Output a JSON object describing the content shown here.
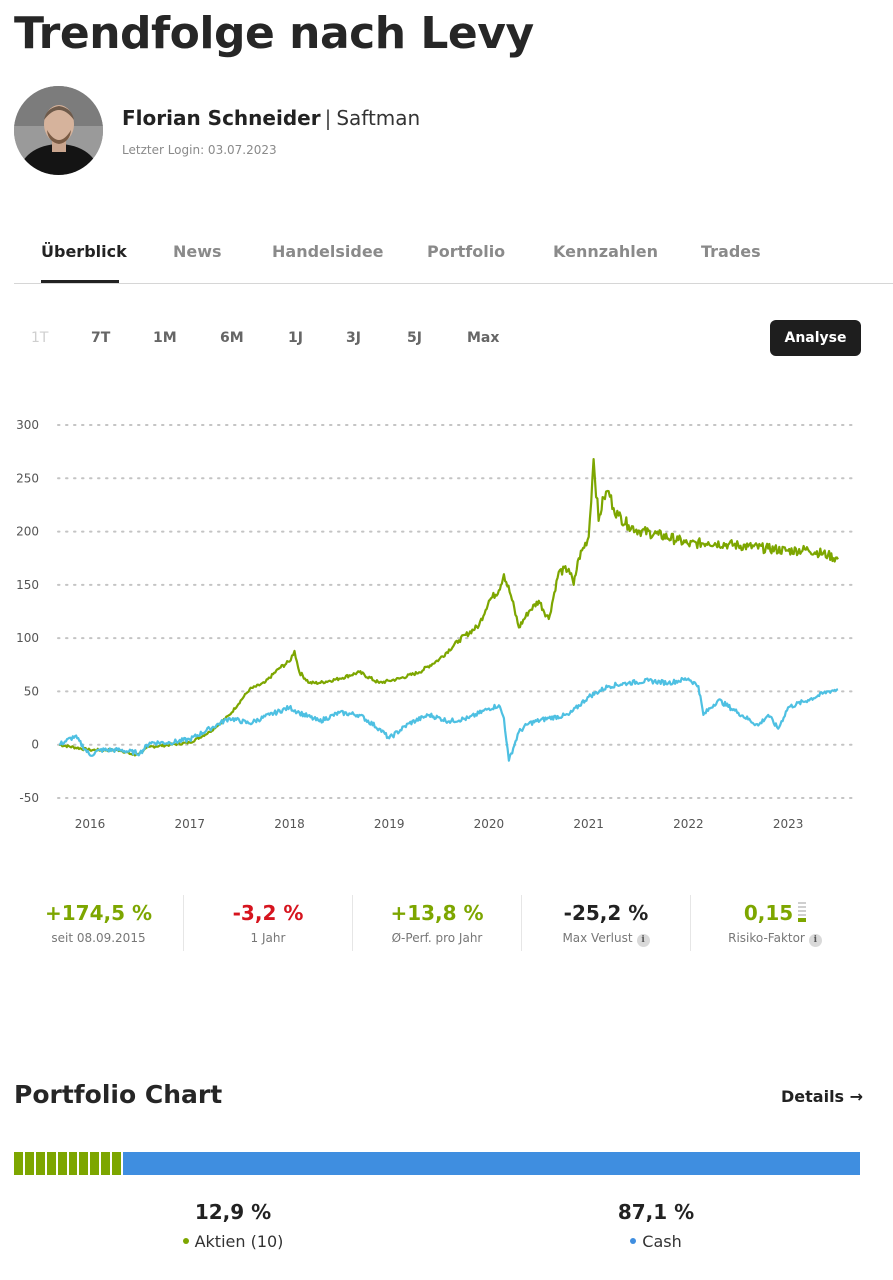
{
  "page": {
    "title": "Trendfolge nach Levy"
  },
  "author": {
    "name": "Florian Schneider",
    "separator": "|",
    "nickname": "Saftman",
    "last_login": "Letzter Login: 03.07.2023"
  },
  "tabs": [
    {
      "label": "Überblick",
      "active": true
    },
    {
      "label": "News"
    },
    {
      "label": "Handelsidee"
    },
    {
      "label": "Portfolio"
    },
    {
      "label": "Kennzahlen"
    },
    {
      "label": "Trades"
    }
  ],
  "ranges": [
    {
      "label": "1T",
      "disabled": true
    },
    {
      "label": "7T"
    },
    {
      "label": "1M"
    },
    {
      "label": "6M"
    },
    {
      "label": "1J"
    },
    {
      "label": "3J"
    },
    {
      "label": "5J"
    },
    {
      "label": "Max"
    }
  ],
  "analyse_button": "Analyse",
  "colors": {
    "green": "#7da600",
    "blue": "#4ec0e2",
    "red": "#d6141e",
    "bar_blue": "#3f8ee0",
    "dark": "#1e1e1e"
  },
  "chart_data": {
    "type": "line",
    "title": "",
    "xlabel": "",
    "ylabel": "",
    "ylim": [
      -50,
      300
    ],
    "yticks": [
      300,
      250,
      200,
      150,
      100,
      50,
      0,
      -50
    ],
    "xticks": [
      "2016",
      "2017",
      "2018",
      "2019",
      "2020",
      "2021",
      "2022",
      "2023"
    ],
    "grid": "horizontal-dotted",
    "series": [
      {
        "color": "#7da600",
        "x": [
          2015.69,
          2016.0,
          2016.3,
          2016.45,
          2016.6,
          2016.8,
          2017.0,
          2017.2,
          2017.4,
          2017.6,
          2017.75,
          2017.9,
          2018.0,
          2018.05,
          2018.1,
          2018.2,
          2018.3,
          2018.5,
          2018.7,
          2018.9,
          2019.0,
          2019.1,
          2019.3,
          2019.5,
          2019.7,
          2019.9,
          2020.0,
          2020.1,
          2020.15,
          2020.22,
          2020.3,
          2020.4,
          2020.5,
          2020.6,
          2020.7,
          2020.8,
          2020.85,
          2020.9,
          2021.0,
          2021.05,
          2021.1,
          2021.15,
          2021.2,
          2021.25,
          2021.3,
          2021.4,
          2021.5,
          2021.7,
          2021.9,
          2022.0,
          2022.2,
          2022.4,
          2022.6,
          2022.8,
          2023.0,
          2023.2,
          2023.4,
          2023.5
        ],
        "y": [
          0,
          -5,
          -5,
          -10,
          -2,
          0,
          2,
          12,
          28,
          52,
          58,
          72,
          78,
          88,
          68,
          58,
          58,
          62,
          68,
          58,
          60,
          62,
          68,
          80,
          98,
          112,
          135,
          145,
          160,
          140,
          110,
          125,
          135,
          118,
          162,
          165,
          150,
          175,
          195,
          268,
          210,
          232,
          238,
          222,
          215,
          206,
          201,
          197,
          192,
          188,
          190,
          188,
          186,
          184,
          182,
          183,
          178,
          174
        ]
      },
      {
        "color": "#4ec0e2",
        "x": [
          2015.69,
          2015.85,
          2016.0,
          2016.1,
          2016.3,
          2016.5,
          2016.6,
          2016.8,
          2017.0,
          2017.2,
          2017.4,
          2017.6,
          2017.8,
          2018.0,
          2018.1,
          2018.3,
          2018.5,
          2018.7,
          2018.9,
          2019.0,
          2019.2,
          2019.4,
          2019.6,
          2019.8,
          2020.0,
          2020.1,
          2020.15,
          2020.2,
          2020.3,
          2020.4,
          2020.6,
          2020.8,
          2021.0,
          2021.2,
          2021.4,
          2021.6,
          2021.8,
          2022.0,
          2022.1,
          2022.15,
          2022.3,
          2022.5,
          2022.7,
          2022.8,
          2022.9,
          2023.0,
          2023.2,
          2023.4,
          2023.5
        ],
        "y": [
          0,
          8,
          -10,
          -5,
          -5,
          -8,
          2,
          2,
          5,
          15,
          25,
          20,
          28,
          35,
          30,
          22,
          30,
          28,
          15,
          6,
          20,
          28,
          22,
          25,
          34,
          37,
          25,
          -15,
          12,
          20,
          25,
          28,
          45,
          55,
          58,
          60,
          58,
          62,
          55,
          28,
          42,
          30,
          18,
          28,
          15,
          35,
          42,
          50,
          52
        ]
      }
    ]
  },
  "stats": [
    {
      "value": "+174,5 %",
      "label": "seit 08.09.2015",
      "color": "#7da600"
    },
    {
      "value": "-3,2 %",
      "label": "1 Jahr",
      "color": "#d6141e"
    },
    {
      "value": "+13,8 %",
      "label": "Ø-Perf. pro Jahr",
      "color": "#7da600"
    },
    {
      "value": "-25,2 %",
      "label": "Max Verlust",
      "color": "#222222",
      "info": true
    },
    {
      "value": "0,15",
      "label": "Risiko-Faktor",
      "color": "#7da600",
      "info": true,
      "risk": true
    }
  ],
  "portfolio": {
    "title": "Portfolio Chart",
    "details_label": "Details →",
    "stocks": {
      "pct": "12,9 %",
      "label": "Aktien (10)",
      "fraction": 0.129,
      "count": 10
    },
    "cash": {
      "pct": "87,1 %",
      "label": "Cash",
      "fraction": 0.871
    }
  }
}
